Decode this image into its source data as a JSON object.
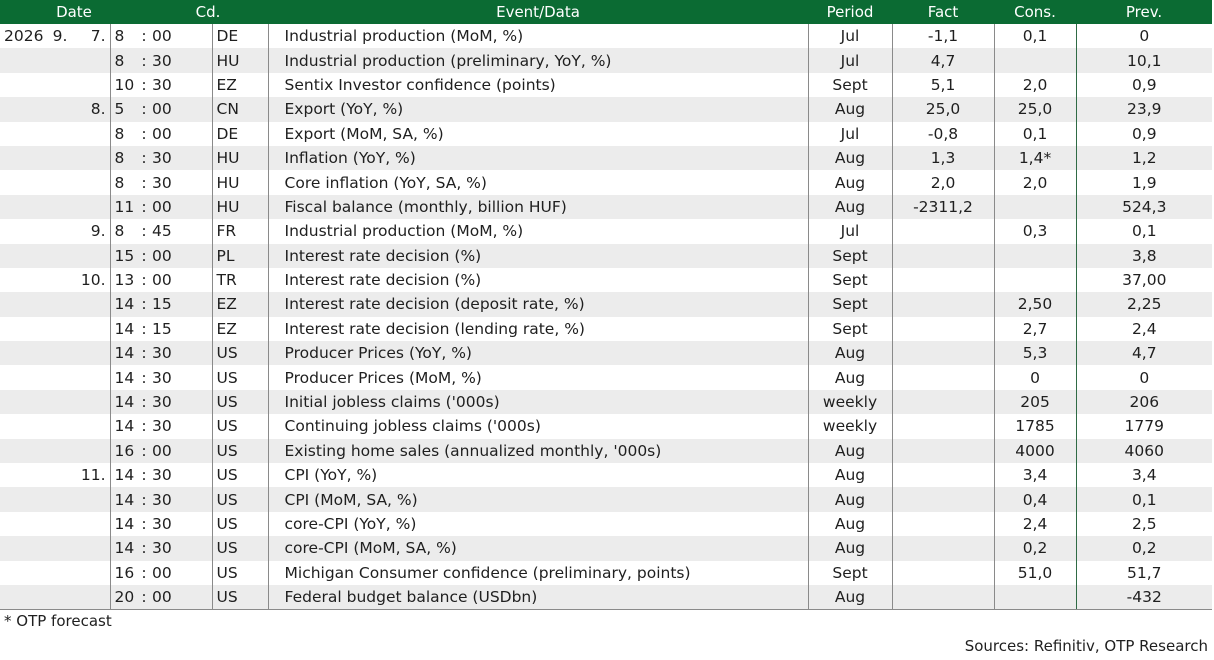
{
  "header": {
    "date": "Date",
    "cd": "Cd.",
    "event": "Event/Data",
    "period": "Period",
    "fact": "Fact",
    "cons": "Cons.",
    "prev": "Prev."
  },
  "rows": [
    {
      "year": "2026",
      "month": "9.",
      "day": "7.",
      "hour": "8",
      "minute": "00",
      "cd": "DE",
      "event": "Industrial production (MoM, %)",
      "period": "Jul",
      "fact": "-1,1",
      "cons": "0,1",
      "prev": "0"
    },
    {
      "year": "",
      "month": "",
      "day": "",
      "hour": "8",
      "minute": "30",
      "cd": "HU",
      "event": "Industrial production (preliminary, YoY, %)",
      "period": "Jul",
      "fact": "4,7",
      "cons": "",
      "prev": "10,1"
    },
    {
      "year": "",
      "month": "",
      "day": "",
      "hour": "10",
      "minute": "30",
      "cd": "EZ",
      "event": "Sentix Investor confidence (points)",
      "period": "Sept",
      "fact": "5,1",
      "cons": "2,0",
      "prev": "0,9"
    },
    {
      "year": "",
      "month": "",
      "day": "8.",
      "hour": "5",
      "minute": "00",
      "cd": "CN",
      "event": "Export (YoY, %)",
      "period": "Aug",
      "fact": "25,0",
      "cons": "25,0",
      "prev": "23,9"
    },
    {
      "year": "",
      "month": "",
      "day": "",
      "hour": "8",
      "minute": "00",
      "cd": "DE",
      "event": "Export (MoM, SA, %)",
      "period": "Jul",
      "fact": "-0,8",
      "cons": "0,1",
      "prev": "0,9"
    },
    {
      "year": "",
      "month": "",
      "day": "",
      "hour": "8",
      "minute": "30",
      "cd": "HU",
      "event": "Inflation (YoY, %)",
      "period": "Aug",
      "fact": "1,3",
      "cons": "1,4*",
      "prev": "1,2"
    },
    {
      "year": "",
      "month": "",
      "day": "",
      "hour": "8",
      "minute": "30",
      "cd": "HU",
      "event": "Core inflation (YoY, SA, %)",
      "period": "Aug",
      "fact": "2,0",
      "cons": "2,0",
      "prev": "1,9"
    },
    {
      "year": "",
      "month": "",
      "day": "",
      "hour": "11",
      "minute": "00",
      "cd": "HU",
      "event": "Fiscal balance (monthly, billion HUF)",
      "period": "Aug",
      "fact": "-2311,2",
      "cons": "",
      "prev": "524,3"
    },
    {
      "year": "",
      "month": "",
      "day": "9.",
      "hour": "8",
      "minute": "45",
      "cd": "FR",
      "event": "Industrial production (MoM, %)",
      "period": "Jul",
      "fact": "",
      "cons": "0,3",
      "prev": "0,1"
    },
    {
      "year": "",
      "month": "",
      "day": "",
      "hour": "15",
      "minute": "00",
      "cd": "PL",
      "event": "Interest rate decision (%)",
      "period": "Sept",
      "fact": "",
      "cons": "",
      "prev": "3,8"
    },
    {
      "year": "",
      "month": "",
      "day": "10.",
      "hour": "13",
      "minute": "00",
      "cd": "TR",
      "event": "Interest rate decision (%)",
      "period": "Sept",
      "fact": "",
      "cons": "",
      "prev": "37,00"
    },
    {
      "year": "",
      "month": "",
      "day": "",
      "hour": "14",
      "minute": "15",
      "cd": "EZ",
      "event": "Interest rate decision (deposit rate, %)",
      "period": "Sept",
      "fact": "",
      "cons": "2,50",
      "prev": "2,25"
    },
    {
      "year": "",
      "month": "",
      "day": "",
      "hour": "14",
      "minute": "15",
      "cd": "EZ",
      "event": "Interest rate decision (lending rate, %)",
      "period": "Sept",
      "fact": "",
      "cons": "2,7",
      "prev": "2,4"
    },
    {
      "year": "",
      "month": "",
      "day": "",
      "hour": "14",
      "minute": "30",
      "cd": "US",
      "event": "Producer Prices (YoY, %)",
      "period": "Aug",
      "fact": "",
      "cons": "5,3",
      "prev": "4,7"
    },
    {
      "year": "",
      "month": "",
      "day": "",
      "hour": "14",
      "minute": "30",
      "cd": "US",
      "event": "Producer Prices (MoM, %)",
      "period": "Aug",
      "fact": "",
      "cons": "0",
      "prev": "0"
    },
    {
      "year": "",
      "month": "",
      "day": "",
      "hour": "14",
      "minute": "30",
      "cd": "US",
      "event": "Initial jobless claims ('000s)",
      "period": "weekly",
      "fact": "",
      "cons": "205",
      "prev": "206"
    },
    {
      "year": "",
      "month": "",
      "day": "",
      "hour": "14",
      "minute": "30",
      "cd": "US",
      "event": "Continuing jobless claims ('000s)",
      "period": "weekly",
      "fact": "",
      "cons": "1785",
      "prev": "1779"
    },
    {
      "year": "",
      "month": "",
      "day": "",
      "hour": "16",
      "minute": "00",
      "cd": "US",
      "event": "Existing home sales (annualized monthly, '000s)",
      "period": "Aug",
      "fact": "",
      "cons": "4000",
      "prev": "4060"
    },
    {
      "year": "",
      "month": "",
      "day": "11.",
      "hour": "14",
      "minute": "30",
      "cd": "US",
      "event": "CPI (YoY, %)",
      "period": "Aug",
      "fact": "",
      "cons": "3,4",
      "prev": "3,4"
    },
    {
      "year": "",
      "month": "",
      "day": "",
      "hour": "14",
      "minute": "30",
      "cd": "US",
      "event": "CPI (MoM, SA, %)",
      "period": "Aug",
      "fact": "",
      "cons": "0,4",
      "prev": "0,1"
    },
    {
      "year": "",
      "month": "",
      "day": "",
      "hour": "14",
      "minute": "30",
      "cd": "US",
      "event": "core-CPI (YoY, %)",
      "period": "Aug",
      "fact": "",
      "cons": "2,4",
      "prev": "2,5"
    },
    {
      "year": "",
      "month": "",
      "day": "",
      "hour": "14",
      "minute": "30",
      "cd": "US",
      "event": "core-CPI (MoM, SA, %)",
      "period": "Aug",
      "fact": "",
      "cons": "0,2",
      "prev": "0,2"
    },
    {
      "year": "",
      "month": "",
      "day": "",
      "hour": "16",
      "minute": "00",
      "cd": "US",
      "event": "Michigan Consumer confidence (preliminary, points)",
      "period": "Sept",
      "fact": "",
      "cons": "51,0",
      "prev": "51,7"
    },
    {
      "year": "",
      "month": "",
      "day": "",
      "hour": "20",
      "minute": "00",
      "cd": "US",
      "event": "Federal budget balance (USDbn)",
      "period": "Aug",
      "fact": "",
      "cons": "",
      "prev": "-432"
    }
  ],
  "time_separator": ":",
  "footnote": "* OTP forecast",
  "source": "Sources: Refinitiv, OTP Research"
}
